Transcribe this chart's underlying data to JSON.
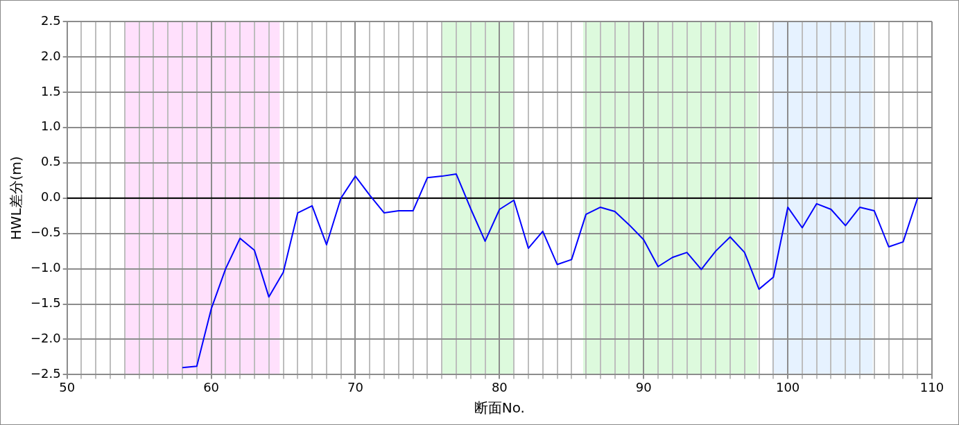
{
  "chart_data": {
    "type": "line",
    "xlabel": "断面No.",
    "ylabel": "HWL差分(m)",
    "series": [
      {
        "color": "#0000ff",
        "x": [
          58,
          59,
          60,
          61,
          62,
          63,
          64,
          65,
          66,
          67,
          68,
          69,
          70,
          71,
          72,
          73,
          74,
          75,
          76,
          77,
          78,
          79,
          80,
          81,
          82,
          83,
          84,
          85,
          86,
          87,
          88,
          89,
          90,
          91,
          92,
          93,
          94,
          95,
          96,
          97,
          98,
          99,
          100,
          101,
          102,
          103,
          104,
          105,
          106,
          107,
          108,
          109
        ],
        "values": [
          -2.4,
          -2.38,
          -1.57,
          -1.0,
          -0.57,
          -0.74,
          -1.4,
          -1.05,
          -0.21,
          -0.11,
          -0.66,
          0.0,
          0.31,
          0.04,
          -0.21,
          -0.18,
          -0.18,
          0.29,
          0.31,
          0.34,
          -0.15,
          -0.61,
          -0.16,
          -0.03,
          -0.71,
          -0.47,
          -0.94,
          -0.87,
          -0.23,
          -0.13,
          -0.19,
          -0.38,
          -0.59,
          -0.97,
          -0.84,
          -0.77,
          -1.01,
          -0.75,
          -0.55,
          -0.77,
          -1.29,
          -1.12,
          -0.13,
          -0.42,
          -0.08,
          -0.16,
          -0.39,
          -0.13,
          -0.18,
          -0.69,
          -0.62,
          0.0
        ]
      }
    ],
    "xlim": [
      50,
      110
    ],
    "xticks": [
      50,
      {
        "value": 51,
        "label": null
      },
      {
        "value": 52,
        "label": null
      },
      {
        "value": 53,
        "label": null
      },
      {
        "value": 54,
        "label": null
      },
      {
        "value": 55,
        "label": null
      },
      {
        "value": 56,
        "label": null
      },
      {
        "value": 57,
        "label": null
      },
      {
        "value": 58,
        "label": null
      },
      {
        "value": 59,
        "label": null
      },
      60,
      {
        "value": 61,
        "label": null
      },
      {
        "value": 62,
        "label": null
      },
      {
        "value": 63,
        "label": null
      },
      {
        "value": 64,
        "label": null
      },
      {
        "value": 65,
        "label": null
      },
      {
        "value": 66,
        "label": null
      },
      {
        "value": 67,
        "label": null
      },
      {
        "value": 68,
        "label": null
      },
      {
        "value": 69,
        "label": null
      },
      70,
      {
        "value": 71,
        "label": null
      },
      {
        "value": 72,
        "label": null
      },
      {
        "value": 73,
        "label": null
      },
      {
        "value": 74,
        "label": null
      },
      {
        "value": 75,
        "label": null
      },
      {
        "value": 76,
        "label": null
      },
      {
        "value": 77,
        "label": null
      },
      {
        "value": 78,
        "label": null
      },
      {
        "value": 79,
        "label": null
      },
      80,
      {
        "value": 81,
        "label": null
      },
      {
        "value": 82,
        "label": null
      },
      {
        "value": 83,
        "label": null
      },
      {
        "value": 84,
        "label": null
      },
      {
        "value": 85,
        "label": null
      },
      {
        "value": 86,
        "label": null
      },
      {
        "value": 87,
        "label": null
      },
      {
        "value": 88,
        "label": null
      },
      {
        "value": 89,
        "label": null
      },
      90,
      {
        "value": 91,
        "label": null
      },
      {
        "value": 92,
        "label": null
      },
      {
        "value": 93,
        "label": null
      },
      {
        "value": 94,
        "label": null
      },
      {
        "value": 95,
        "label": null
      },
      {
        "value": 96,
        "label": null
      },
      {
        "value": 97,
        "label": null
      },
      {
        "value": 98,
        "label": null
      },
      {
        "value": 99,
        "label": null
      },
      100,
      {
        "value": 101,
        "label": null
      },
      {
        "value": 102,
        "label": null
      },
      {
        "value": 103,
        "label": null
      },
      {
        "value": 104,
        "label": null
      },
      {
        "value": 105,
        "label": null
      },
      {
        "value": 106,
        "label": null
      },
      {
        "value": 107,
        "label": null
      },
      {
        "value": 108,
        "label": null
      },
      {
        "value": 109,
        "label": null
      },
      110
    ],
    "ylim": [
      -2.5,
      2.5
    ],
    "yticks": [
      {
        "value": -2.5,
        "label": "−2.5"
      },
      {
        "value": -2.0,
        "label": "−2.0"
      },
      {
        "value": -1.5,
        "label": "−1.5"
      },
      {
        "value": -1.0,
        "label": "−1.0"
      },
      {
        "value": -0.5,
        "label": "−0.5"
      },
      {
        "value": 0,
        "label": "0.0"
      },
      {
        "value": 0.5,
        "label": "0.5"
      },
      {
        "value": 1.0,
        "label": "1.0"
      },
      {
        "value": 1.5,
        "label": "1.5"
      },
      {
        "value": 2.0,
        "label": "2.0"
      },
      {
        "value": 2.5,
        "label": "2.5"
      }
    ],
    "grid": true,
    "marker": "none",
    "line_style": "solid",
    "legend": false,
    "ref_lines": [
      {
        "axis": "y",
        "value": 0,
        "color": "#000000"
      }
    ],
    "bands": [
      {
        "axis": "x",
        "from": 54,
        "to": 64.75,
        "color": "#ffe0fc"
      },
      {
        "axis": "x",
        "from": 76,
        "to": 81,
        "color": "#ddfadd"
      },
      {
        "axis": "x",
        "from": 85.8,
        "to": 97.9,
        "color": "#ddfadd"
      },
      {
        "axis": "x",
        "from": 98.9,
        "to": 105.9,
        "color": "#e6f2ff"
      }
    ]
  }
}
